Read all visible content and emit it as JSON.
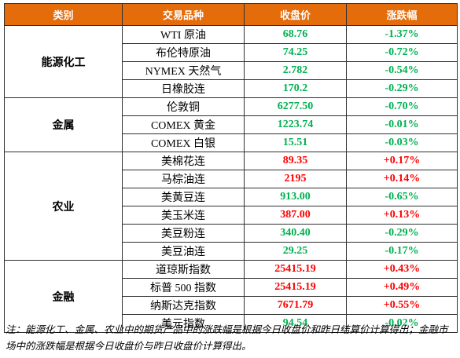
{
  "headers": {
    "category": "类别",
    "product": "交易品种",
    "close": "收盘价",
    "change": "涨跌幅"
  },
  "groups": [
    {
      "category": "能源化工",
      "rows": [
        {
          "name": "WTI 原油",
          "close": "68.76",
          "change": "-1.37%"
        },
        {
          "name": "布伦特原油",
          "close": "74.25",
          "change": "-0.72%"
        },
        {
          "name": "NYMEX 天然气",
          "close": "2.782",
          "change": "-0.54%"
        },
        {
          "name": "日橡胶连",
          "close": "170.2",
          "change": "-0.29%"
        }
      ]
    },
    {
      "category": "金属",
      "rows": [
        {
          "name": "伦敦铜",
          "close": "6277.50",
          "change": "-0.70%"
        },
        {
          "name": "COMEX 黄金",
          "close": "1223.74",
          "change": "-0.01%"
        },
        {
          "name": "COMEX 白银",
          "close": "15.51",
          "change": "-0.03%"
        }
      ]
    },
    {
      "category": "农业",
      "rows": [
        {
          "name": "美棉花连",
          "close": "89.35",
          "change": "+0.17%"
        },
        {
          "name": "马棕油连",
          "close": "2195",
          "change": "+0.14%"
        },
        {
          "name": "美黄豆连",
          "close": "913.00",
          "change": "-0.65%"
        },
        {
          "name": "美玉米连",
          "close": "387.00",
          "change": "+0.13%"
        },
        {
          "name": "美豆粉连",
          "close": "340.40",
          "change": "-0.29%"
        },
        {
          "name": "美豆油连",
          "close": "29.25",
          "change": "-0.17%"
        }
      ]
    },
    {
      "category": "金融",
      "rows": [
        {
          "name": "道琼斯指数",
          "close": "25415.19",
          "change": "+0.43%"
        },
        {
          "name": "标普 500 指数",
          "close": "25415.19",
          "change": "+0.49%"
        },
        {
          "name": "纳斯达克指数",
          "close": "7671.79",
          "change": "+0.55%"
        },
        {
          "name": "美元指数",
          "close": "94.54",
          "change": "-0.02%"
        }
      ]
    }
  ],
  "colors": {
    "header_bg": "#e46c0a",
    "up": "#ff0000",
    "down": "#00b050"
  },
  "note": "注：能源化工、金属、农业中的期货产品中的涨跌幅是根据今日收盘价和昨日结算价计算得出；金融市场中的涨跌幅是根据今日收盘价与昨日收盘价计算得出。"
}
